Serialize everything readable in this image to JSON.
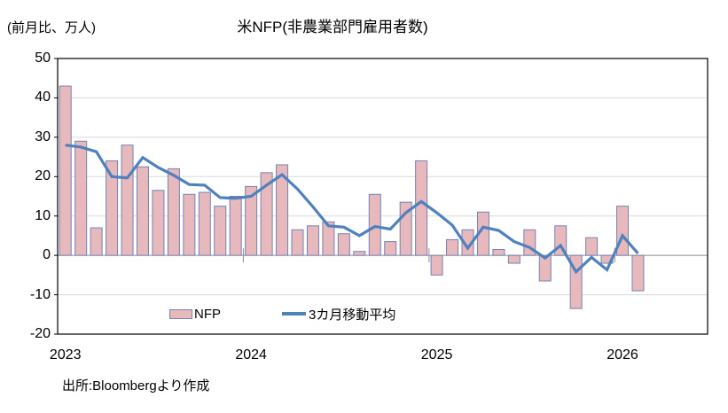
{
  "header": {
    "title": "米NFP(非農業部門雇用者数)",
    "unit_label": "(前月比、万人)"
  },
  "legend": {
    "nfp_label": "NFP",
    "ma_label": "3カ月移動平均"
  },
  "footer": {
    "source": "出所:Bloombergより作成"
  },
  "colors": {
    "bar_fill": "#E7B8BC",
    "bar_border": "#7484B3",
    "ma_line": "#4F81BD",
    "gridline": "#D9D9D9",
    "zero_line": "#8C8C8C",
    "plot_border": "#000000",
    "text": "#000000"
  },
  "chart_data": {
    "type": "bar",
    "title": "米NFP(非農業部門雇用者数)",
    "unit": "前月比、万人",
    "categories": [
      "2023-01",
      "2023-02",
      "2023-03",
      "2023-04",
      "2023-05",
      "2023-06",
      "2023-07",
      "2023-08",
      "2023-09",
      "2023-10",
      "2023-11",
      "2023-12",
      "2024-01",
      "2024-02",
      "2024-03",
      "2024-04",
      "2024-05",
      "2024-06",
      "2024-07",
      "2024-08",
      "2024-09",
      "2024-10",
      "2024-11",
      "2024-12",
      "2025-01",
      "2025-02",
      "2025-03",
      "2025-04",
      "2025-05",
      "2025-06",
      "2025-07",
      "2025-08",
      "2025-09",
      "2025-10",
      "2025-11",
      "2025-12",
      "2026-01",
      "2026-02"
    ],
    "series": [
      {
        "name": "NFP",
        "type": "bar",
        "values": [
          43,
          29,
          7,
          24,
          28,
          22.5,
          16.5,
          22,
          15.5,
          16,
          12.5,
          15,
          17.5,
          21,
          23,
          6.5,
          7.5,
          8.5,
          5.5,
          1,
          15.5,
          3.5,
          13.5,
          24,
          -5,
          4,
          6.5,
          11,
          1.5,
          -2,
          6.5,
          -6.5,
          7.5,
          -13.5,
          4.5,
          -2,
          12.5,
          -9
        ]
      },
      {
        "name": "3カ月移動平均",
        "type": "line",
        "values": [
          28,
          27.5,
          26.33,
          20,
          19.67,
          24.83,
          22.33,
          20.33,
          18,
          17.83,
          14.67,
          14.5,
          15,
          17.83,
          20.5,
          16.83,
          12.33,
          7.5,
          7.17,
          5,
          7.33,
          6.67,
          10.83,
          13.67,
          10.83,
          7.67,
          1.83,
          7.17,
          6.33,
          3.5,
          2,
          -0.67,
          2.5,
          -4.17,
          -0.5,
          -3.67,
          5,
          0.5
        ]
      }
    ],
    "ylim": [
      -20,
      50
    ],
    "yticks": [
      50,
      40,
      30,
      20,
      10,
      0,
      -10,
      -20
    ],
    "x_axis_year_labels": [
      "2023",
      "2024",
      "2025",
      "2026"
    ],
    "months_per_year": 12,
    "x_total_slots": 42,
    "grid": "horizontal",
    "legend_position": "bottom"
  }
}
